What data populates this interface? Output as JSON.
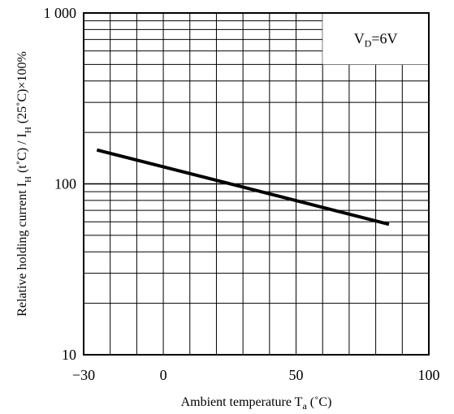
{
  "chart_data": {
    "type": "line",
    "x_ticks": [
      {
        "value": -30,
        "label": "−30"
      },
      {
        "value": 0,
        "label": "0"
      },
      {
        "value": 50,
        "label": "50"
      },
      {
        "value": 100,
        "label": "100"
      }
    ],
    "y_ticks": [
      {
        "value": 10,
        "label": "10"
      },
      {
        "value": 100,
        "label": "100"
      },
      {
        "value": 1000,
        "label": "1 000"
      }
    ],
    "xlim": [
      -30,
      100
    ],
    "ylim": [
      10,
      1000
    ],
    "y_scale": "log",
    "grid": true,
    "x_grid_step": 10,
    "series": [
      {
        "x": [
          -25,
          85
        ],
        "y": [
          158,
          58
        ]
      }
    ],
    "xlabel": {
      "main": "Ambient temperature T",
      "sub": "a",
      "unit": " (˚C)"
    },
    "ylabel": {
      "parts": [
        {
          "t": "Relative holding current I"
        },
        {
          "t": "H",
          "sub": true
        },
        {
          "t": " (t˚C) / I"
        },
        {
          "t": "H",
          "sub": true
        },
        {
          "t": " (25˚C)×100%"
        }
      ]
    },
    "annotation": {
      "main": "V",
      "sub": "D",
      "rest": "=6V"
    }
  }
}
